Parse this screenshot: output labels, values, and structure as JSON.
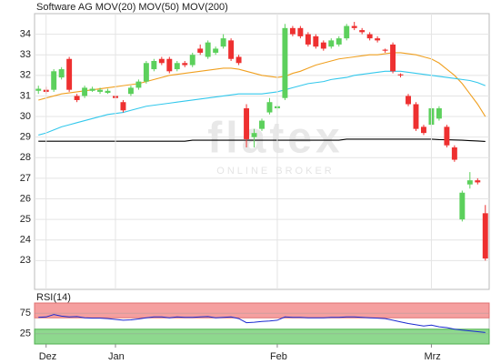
{
  "chart_data": [
    {
      "type": "candlestick",
      "name": "Software AG",
      "name_color": "#e8735a",
      "up_color": "#5cd05c",
      "down_color": "#ee3030",
      "watermark": "flatex",
      "watermark_sub": "ONLINE BROKER",
      "open": [
        31.25,
        31.3,
        31.3,
        31.9,
        32.8,
        31.0,
        31.0,
        31.25,
        31.2,
        31.15,
        31.0,
        30.7,
        31.1,
        31.4,
        31.7,
        32.3,
        32.8,
        32.8,
        32.3,
        32.6,
        32.5,
        33.3,
        32.9,
        33.1,
        33.4,
        33.7,
        32.9,
        30.4,
        29.0,
        29.4,
        30.2,
        30.4,
        30.9,
        34.3,
        34.3,
        34.0,
        33.9,
        33.6,
        33.4,
        33.5,
        33.8,
        34.4,
        34.2,
        34.0,
        33.8,
        33.25,
        33.5,
        32.05,
        31.0,
        30.6,
        29.5,
        29.6,
        29.9,
        29.5,
        28.5,
        25.0,
        26.7,
        26.9,
        25.3
      ],
      "high": [
        31.5,
        31.45,
        32.3,
        32.4,
        32.9,
        31.1,
        31.5,
        31.45,
        31.4,
        31.35,
        31.1,
        30.8,
        31.5,
        31.8,
        32.7,
        32.8,
        32.9,
        32.9,
        32.7,
        32.7,
        33.1,
        33.5,
        33.7,
        33.4,
        34.0,
        33.8,
        33.0,
        30.6,
        29.4,
        29.9,
        30.9,
        30.6,
        34.5,
        34.4,
        34.4,
        34.1,
        34.0,
        33.7,
        33.8,
        33.9,
        34.5,
        34.6,
        34.3,
        34.1,
        33.9,
        33.3,
        33.6,
        32.1,
        31.1,
        30.7,
        29.6,
        30.5,
        30.5,
        29.6,
        28.6,
        26.4,
        27.3,
        27.0,
        25.7
      ],
      "low": [
        31.1,
        31.1,
        31.2,
        31.8,
        31.2,
        30.7,
        30.9,
        31.2,
        31.1,
        31.1,
        30.8,
        30.2,
        31.0,
        31.3,
        31.6,
        32.2,
        32.5,
        32.1,
        32.2,
        32.4,
        32.4,
        33.0,
        32.8,
        33.0,
        33.3,
        32.7,
        32.5,
        28.5,
        28.5,
        29.3,
        30.1,
        30.3,
        30.8,
        33.9,
        33.8,
        33.4,
        33.3,
        33.2,
        33.3,
        33.4,
        33.7,
        34.2,
        34.0,
        33.7,
        33.6,
        33.1,
        32.1,
        31.9,
        30.5,
        29.3,
        29.1,
        29.5,
        29.8,
        28.5,
        27.8,
        24.9,
        26.5,
        26.7,
        23.0
      ],
      "close": [
        31.35,
        31.2,
        32.2,
        32.3,
        31.3,
        30.8,
        31.4,
        31.35,
        31.3,
        31.25,
        30.9,
        30.3,
        31.4,
        31.7,
        32.6,
        32.7,
        32.6,
        32.2,
        32.6,
        32.5,
        33.0,
        33.1,
        33.6,
        33.3,
        33.8,
        32.8,
        32.6,
        28.9,
        29.2,
        29.8,
        30.7,
        30.5,
        34.3,
        34.0,
        33.9,
        33.5,
        33.4,
        33.3,
        33.7,
        33.8,
        34.4,
        34.3,
        34.1,
        33.8,
        33.7,
        33.2,
        32.2,
        32.0,
        30.6,
        29.4,
        29.2,
        30.4,
        30.4,
        28.6,
        27.9,
        26.3,
        26.9,
        26.8,
        23.1
      ],
      "series": [
        {
          "name": "MOV(20)",
          "color": "#f0a020",
          "values": [
            30.8,
            30.9,
            31.0,
            31.1,
            31.15,
            31.2,
            31.25,
            31.3,
            31.35,
            31.4,
            31.45,
            31.5,
            31.55,
            31.6,
            31.7,
            31.8,
            31.9,
            32.0,
            32.05,
            32.1,
            32.15,
            32.2,
            32.25,
            32.3,
            32.35,
            32.35,
            32.3,
            32.2,
            32.1,
            32.0,
            31.95,
            31.9,
            31.95,
            32.1,
            32.2,
            32.35,
            32.5,
            32.6,
            32.7,
            32.8,
            32.85,
            32.9,
            32.95,
            33.0,
            33.0,
            33.05,
            33.1,
            33.1,
            33.05,
            33.0,
            32.9,
            32.8,
            32.6,
            32.3,
            32.0,
            31.6,
            31.1,
            30.6,
            30.0
          ]
        },
        {
          "name": "MOV(50)",
          "color": "#33c8ec",
          "values": [
            29.1,
            29.2,
            29.35,
            29.5,
            29.6,
            29.7,
            29.8,
            29.9,
            30.0,
            30.1,
            30.15,
            30.2,
            30.3,
            30.4,
            30.5,
            30.55,
            30.6,
            30.65,
            30.7,
            30.75,
            30.8,
            30.85,
            30.9,
            30.95,
            31.0,
            31.05,
            31.1,
            31.1,
            31.1,
            31.1,
            31.15,
            31.2,
            31.3,
            31.4,
            31.5,
            31.6,
            31.65,
            31.7,
            31.8,
            31.85,
            31.9,
            32.0,
            32.05,
            32.1,
            32.15,
            32.2,
            32.2,
            32.2,
            32.15,
            32.1,
            32.05,
            32.0,
            31.95,
            31.9,
            31.85,
            31.8,
            31.75,
            31.65,
            31.5
          ]
        },
        {
          "name": "MOV(200)",
          "color": "#000000",
          "values": [
            28.8,
            28.8,
            28.8,
            28.8,
            28.8,
            28.8,
            28.8,
            28.8,
            28.8,
            28.8,
            28.8,
            28.8,
            28.8,
            28.8,
            28.8,
            28.8,
            28.8,
            28.8,
            28.8,
            28.8,
            28.85,
            28.85,
            28.85,
            28.85,
            28.85,
            28.85,
            28.85,
            28.85,
            28.85,
            28.85,
            28.85,
            28.85,
            28.85,
            28.85,
            28.85,
            28.85,
            28.85,
            28.85,
            28.85,
            28.85,
            28.9,
            28.9,
            28.9,
            28.9,
            28.9,
            28.9,
            28.9,
            28.9,
            28.9,
            28.9,
            28.9,
            28.9,
            28.88,
            28.87,
            28.86,
            28.85,
            28.83,
            28.81,
            28.79
          ]
        }
      ],
      "ylim": [
        21.6,
        35
      ],
      "yticks": [
        23,
        24,
        25,
        26,
        27,
        28,
        29,
        30,
        31,
        32,
        33,
        34
      ],
      "grid": true
    },
    {
      "type": "line",
      "title": "RSI(14)",
      "categories": [
        null,
        "Dez",
        null,
        null,
        null,
        null,
        null,
        null,
        null,
        null,
        "Jan",
        null,
        null,
        null,
        null,
        null,
        null,
        null,
        null,
        null,
        null,
        null,
        null,
        null,
        null,
        null,
        null,
        null,
        null,
        null,
        null,
        "Feb",
        null,
        null,
        null,
        null,
        null,
        null,
        null,
        null,
        null,
        null,
        null,
        null,
        null,
        null,
        null,
        null,
        null,
        null,
        null,
        "Mrz",
        null,
        null,
        null,
        null,
        null,
        null,
        null
      ],
      "series": [
        {
          "name": "RSI(14)",
          "color": "#1a2ad0",
          "values": [
            65,
            66,
            72,
            68,
            66,
            67,
            64,
            63,
            63,
            62,
            60,
            58,
            59,
            61,
            64,
            66,
            66,
            64,
            66,
            65,
            65,
            66,
            67,
            64,
            65,
            66,
            62,
            52,
            53,
            55,
            56,
            58,
            66,
            65,
            65,
            64,
            64,
            64,
            65,
            65,
            66,
            66,
            65,
            64,
            63,
            62,
            58,
            54,
            50,
            47,
            44,
            46,
            42,
            40,
            36,
            34,
            32,
            30,
            28
          ]
        }
      ],
      "ylim": [
        0,
        100
      ],
      "yticks": [
        25,
        75
      ],
      "upper_band_color": "#f5a0a0",
      "lower_band_color": "#8ed88e",
      "grid": true
    }
  ]
}
